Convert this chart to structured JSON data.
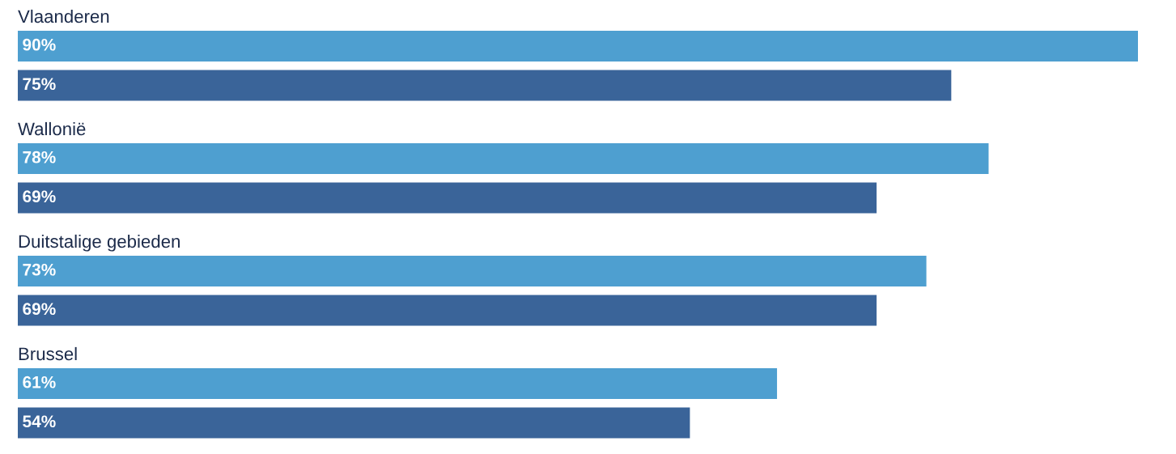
{
  "chart_data": {
    "type": "bar",
    "orientation": "horizontal",
    "categories": [
      "Vlaanderen",
      "Wallonië",
      "Duitstalige gebieden",
      "Brussel"
    ],
    "series": [
      {
        "color": "#4e9fd0",
        "values": [
          90,
          78,
          73,
          61
        ],
        "value_labels": [
          "90%",
          "78%",
          "73%",
          "61%"
        ]
      },
      {
        "color": "#3a6499",
        "values": [
          75,
          69,
          69,
          54
        ],
        "value_labels": [
          "75%",
          "69%",
          "69%",
          "54%"
        ]
      }
    ]
  }
}
